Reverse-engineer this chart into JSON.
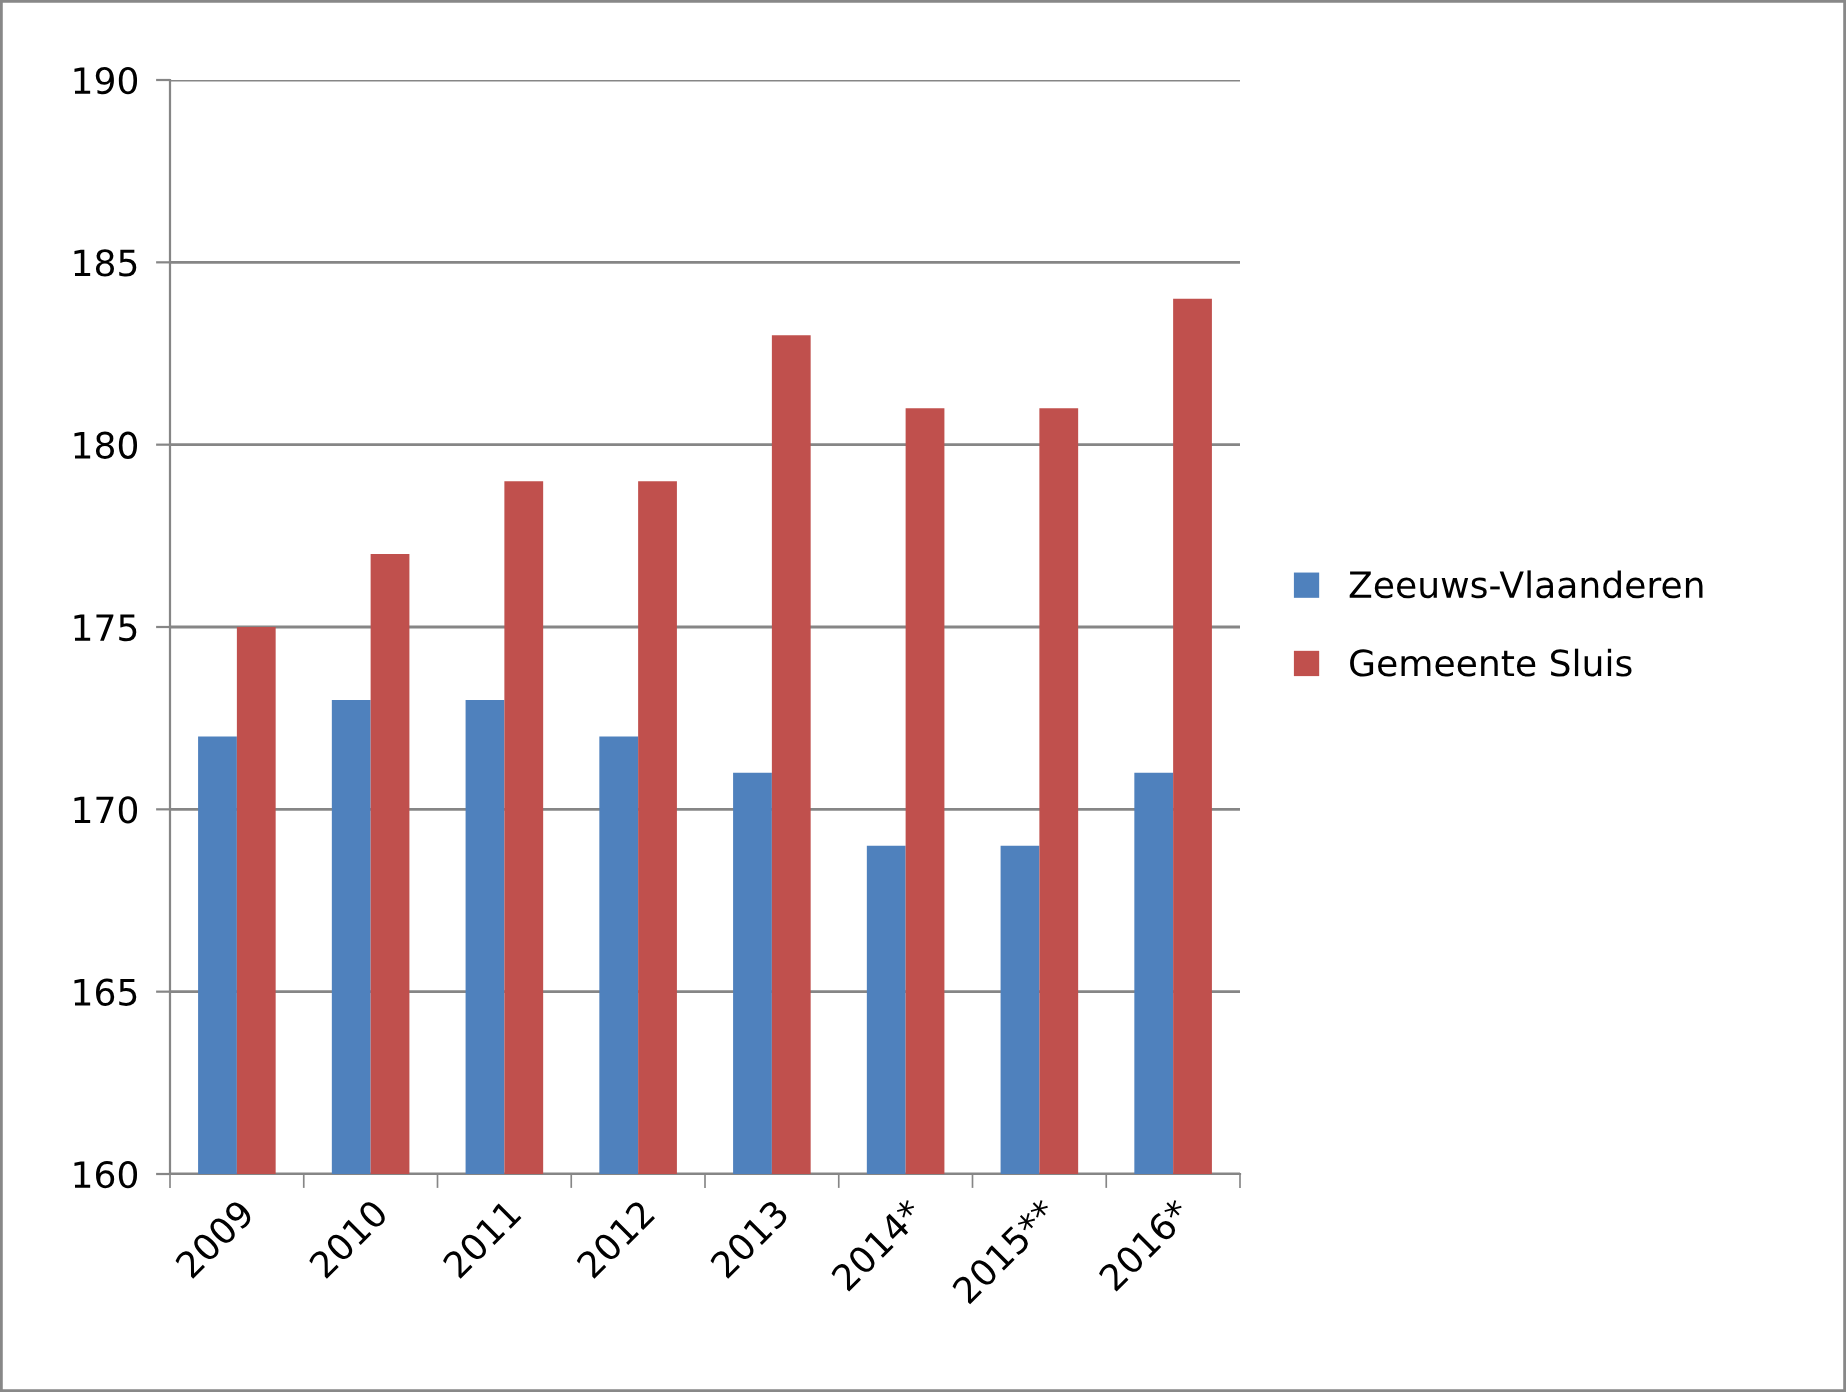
{
  "chart_data": {
    "type": "bar",
    "categories": [
      "2009",
      "2010",
      "2011",
      "2012",
      "2013",
      "2014*",
      "2015**",
      "2016*"
    ],
    "series": [
      {
        "name": "Zeeuws-Vlaanderen",
        "color": "#4f81bd",
        "values": [
          172,
          173,
          173,
          172,
          171,
          169,
          169,
          171
        ]
      },
      {
        "name": "Gemeente Sluis",
        "color": "#c0504d",
        "values": [
          175,
          177,
          179,
          179,
          183,
          181,
          181,
          184
        ]
      }
    ],
    "ylim": [
      160,
      190
    ],
    "yticks": [
      160,
      165,
      170,
      175,
      180,
      185,
      190
    ],
    "grid": "y",
    "legend": "right"
  }
}
